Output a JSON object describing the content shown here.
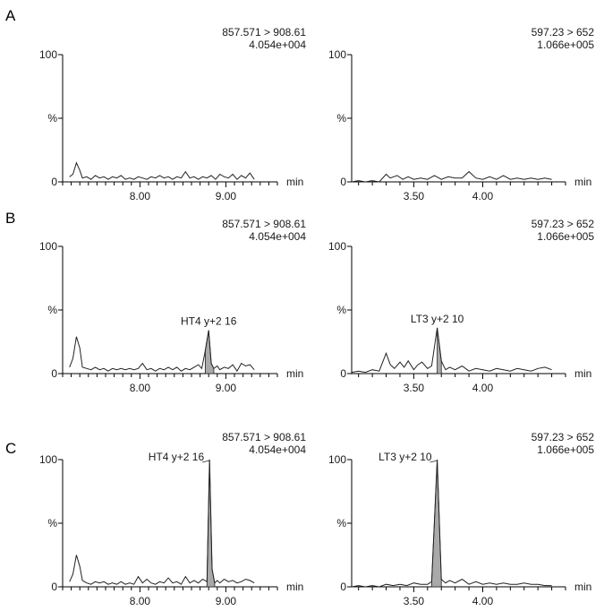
{
  "panels": [
    {
      "letter": "A"
    },
    {
      "letter": "B"
    },
    {
      "letter": "C"
    }
  ],
  "colors": {
    "axis": "#000000",
    "trace": "#222222",
    "peak_fill": "#a9a9a9"
  },
  "chart_data": [
    {
      "type": "line",
      "panel": "A",
      "column": "left",
      "transition": "857.571 > 908.61",
      "intensity": "4.054e+004",
      "x_unit": "min",
      "y_tick_labels": [
        "0",
        "%",
        "100"
      ],
      "xticks": [
        8.0,
        9.0
      ],
      "xtick_labels": [
        "8.00",
        "9.00"
      ],
      "xlim": [
        7.1,
        9.6
      ],
      "ylim": [
        0,
        100
      ],
      "x": [
        7.18,
        7.22,
        7.26,
        7.3,
        7.33,
        7.38,
        7.43,
        7.48,
        7.53,
        7.58,
        7.63,
        7.68,
        7.73,
        7.78,
        7.83,
        7.88,
        7.93,
        7.98,
        8.03,
        8.08,
        8.13,
        8.18,
        8.23,
        8.28,
        8.33,
        8.38,
        8.43,
        8.48,
        8.53,
        8.58,
        8.63,
        8.68,
        8.73,
        8.78,
        8.83,
        8.88,
        8.93,
        8.98,
        9.03,
        9.08,
        9.13,
        9.18,
        9.23,
        9.28,
        9.33
      ],
      "y": [
        4,
        6,
        15,
        9,
        3,
        4,
        2,
        5,
        3,
        4,
        2,
        4,
        3,
        5,
        2,
        3,
        2,
        4,
        3,
        2,
        4,
        3,
        5,
        3,
        4,
        2,
        4,
        3,
        8,
        3,
        4,
        2,
        4,
        3,
        5,
        2,
        6,
        4,
        3,
        6,
        2,
        5,
        3,
        7,
        2
      ],
      "labeled_peak": null
    },
    {
      "type": "line",
      "panel": "A",
      "column": "right",
      "transition": "597.23 > 652",
      "intensity": "1.066e+005",
      "x_unit": "min",
      "y_tick_labels": [
        "0",
        "%",
        "100"
      ],
      "xticks": [
        3.5,
        4.0
      ],
      "xtick_labels": [
        "3.50",
        "4.00"
      ],
      "xlim": [
        3.05,
        4.6
      ],
      "ylim": [
        0,
        100
      ],
      "x": [
        3.05,
        3.1,
        3.15,
        3.2,
        3.25,
        3.3,
        3.33,
        3.38,
        3.42,
        3.46,
        3.5,
        3.55,
        3.6,
        3.65,
        3.7,
        3.75,
        3.8,
        3.85,
        3.9,
        3.95,
        4.0,
        4.05,
        4.1,
        4.15,
        4.2,
        4.25,
        4.3,
        4.35,
        4.4,
        4.45,
        4.5
      ],
      "y": [
        0,
        1,
        0,
        1,
        0,
        6,
        3,
        5,
        2,
        4,
        2,
        3,
        2,
        5,
        2,
        4,
        3,
        3,
        8,
        3,
        2,
        4,
        2,
        5,
        2,
        3,
        2,
        3,
        2,
        3,
        2
      ],
      "labeled_peak": null
    },
    {
      "type": "line",
      "panel": "B",
      "column": "left",
      "transition": "857.571 > 908.61",
      "intensity": "4.054e+004",
      "x_unit": "min",
      "y_tick_labels": [
        "0",
        "%",
        "100"
      ],
      "xticks": [
        8.0,
        9.0
      ],
      "xtick_labels": [
        "8.00",
        "9.00"
      ],
      "xlim": [
        7.1,
        9.6
      ],
      "ylim": [
        0,
        100
      ],
      "x": [
        7.18,
        7.22,
        7.26,
        7.3,
        7.33,
        7.38,
        7.43,
        7.48,
        7.53,
        7.58,
        7.63,
        7.68,
        7.73,
        7.78,
        7.83,
        7.88,
        7.93,
        7.98,
        8.03,
        8.08,
        8.13,
        8.18,
        8.23,
        8.28,
        8.33,
        8.38,
        8.43,
        8.48,
        8.53,
        8.58,
        8.63,
        8.68,
        8.72,
        8.76,
        8.8,
        8.83,
        8.86,
        8.9,
        8.93,
        8.98,
        9.03,
        9.08,
        9.13,
        9.18,
        9.23,
        9.28,
        9.33
      ],
      "y": [
        5,
        12,
        29,
        20,
        5,
        4,
        3,
        5,
        3,
        4,
        2,
        4,
        3,
        4,
        3,
        4,
        3,
        4,
        8,
        3,
        4,
        2,
        4,
        3,
        5,
        3,
        5,
        2,
        4,
        3,
        5,
        7,
        4,
        18,
        34,
        8,
        4,
        6,
        3,
        5,
        4,
        7,
        2,
        8,
        6,
        7,
        3
      ],
      "labeled_peak": {
        "label": "HT4 y+2 16",
        "x_start": 8.76,
        "x_apex": 8.8,
        "x_end": 8.86,
        "apex_y": 34
      }
    },
    {
      "type": "line",
      "panel": "B",
      "column": "right",
      "transition": "597.23 > 652",
      "intensity": "1.066e+005",
      "x_unit": "min",
      "y_tick_labels": [
        "0",
        "%",
        "100"
      ],
      "xticks": [
        3.5,
        4.0
      ],
      "xtick_labels": [
        "3.50",
        "4.00"
      ],
      "xlim": [
        3.05,
        4.6
      ],
      "ylim": [
        0,
        100
      ],
      "x": [
        3.05,
        3.1,
        3.15,
        3.2,
        3.25,
        3.3,
        3.33,
        3.36,
        3.4,
        3.43,
        3.46,
        3.5,
        3.53,
        3.56,
        3.6,
        3.63,
        3.67,
        3.7,
        3.73,
        3.76,
        3.8,
        3.85,
        3.9,
        3.95,
        4.0,
        4.05,
        4.1,
        4.15,
        4.2,
        4.25,
        4.3,
        4.35,
        4.4,
        4.45,
        4.5
      ],
      "y": [
        1,
        2,
        1,
        3,
        2,
        16,
        7,
        4,
        9,
        5,
        10,
        3,
        7,
        9,
        4,
        6,
        36,
        10,
        3,
        5,
        3,
        6,
        2,
        4,
        3,
        2,
        4,
        3,
        2,
        4,
        3,
        2,
        4,
        5,
        3
      ],
      "labeled_peak": {
        "label": "LT3 y+2 10",
        "x_start": 3.64,
        "x_apex": 3.67,
        "x_end": 3.72,
        "apex_y": 36
      }
    },
    {
      "type": "line",
      "panel": "C",
      "column": "left",
      "transition": "857.571 > 908.61",
      "intensity": "4.054e+004",
      "x_unit": "min",
      "y_tick_labels": [
        "0",
        "%",
        "100"
      ],
      "xticks": [
        8.0,
        9.0
      ],
      "xtick_labels": [
        "8.00",
        "9.00"
      ],
      "xlim": [
        7.1,
        9.6
      ],
      "ylim": [
        0,
        100
      ],
      "x": [
        7.18,
        7.22,
        7.26,
        7.3,
        7.33,
        7.38,
        7.43,
        7.48,
        7.53,
        7.58,
        7.63,
        7.68,
        7.73,
        7.78,
        7.83,
        7.88,
        7.93,
        7.98,
        8.03,
        8.08,
        8.13,
        8.18,
        8.23,
        8.28,
        8.33,
        8.38,
        8.43,
        8.48,
        8.53,
        8.58,
        8.63,
        8.68,
        8.73,
        8.78,
        8.81,
        8.84,
        8.87,
        8.9,
        8.93,
        8.98,
        9.03,
        9.08,
        9.13,
        9.18,
        9.23,
        9.28,
        9.33
      ],
      "y": [
        4,
        10,
        25,
        16,
        5,
        3,
        2,
        4,
        3,
        4,
        2,
        3,
        2,
        4,
        2,
        3,
        2,
        8,
        3,
        6,
        3,
        2,
        4,
        3,
        7,
        3,
        4,
        2,
        8,
        3,
        5,
        3,
        6,
        4,
        100,
        14,
        3,
        5,
        3,
        6,
        4,
        5,
        3,
        4,
        6,
        5,
        3
      ],
      "labeled_peak": {
        "label": "HT4 y+2 16",
        "x_start": 8.77,
        "x_apex": 8.81,
        "x_end": 8.87,
        "apex_y": 100
      }
    },
    {
      "type": "line",
      "panel": "C",
      "column": "right",
      "transition": "597.23 > 652",
      "intensity": "1.066e+005",
      "x_unit": "min",
      "y_tick_labels": [
        "0",
        "%",
        "100"
      ],
      "xticks": [
        3.5,
        4.0
      ],
      "xtick_labels": [
        "3.50",
        "4.00"
      ],
      "xlim": [
        3.05,
        4.6
      ],
      "ylim": [
        0,
        100
      ],
      "x": [
        3.05,
        3.1,
        3.15,
        3.2,
        3.25,
        3.3,
        3.35,
        3.4,
        3.45,
        3.5,
        3.55,
        3.6,
        3.63,
        3.67,
        3.7,
        3.73,
        3.76,
        3.8,
        3.85,
        3.9,
        3.95,
        4.0,
        4.05,
        4.1,
        4.15,
        4.2,
        4.25,
        4.3,
        4.35,
        4.4,
        4.45,
        4.5
      ],
      "y": [
        0,
        1,
        0,
        1,
        0,
        2,
        1,
        2,
        1,
        3,
        2,
        2,
        4,
        100,
        6,
        3,
        5,
        3,
        6,
        2,
        4,
        2,
        3,
        2,
        3,
        2,
        2,
        3,
        2,
        2,
        1,
        1
      ],
      "labeled_peak": {
        "label": "LT3 y+2 10",
        "x_start": 3.63,
        "x_apex": 3.67,
        "x_end": 3.72,
        "apex_y": 100
      }
    }
  ]
}
